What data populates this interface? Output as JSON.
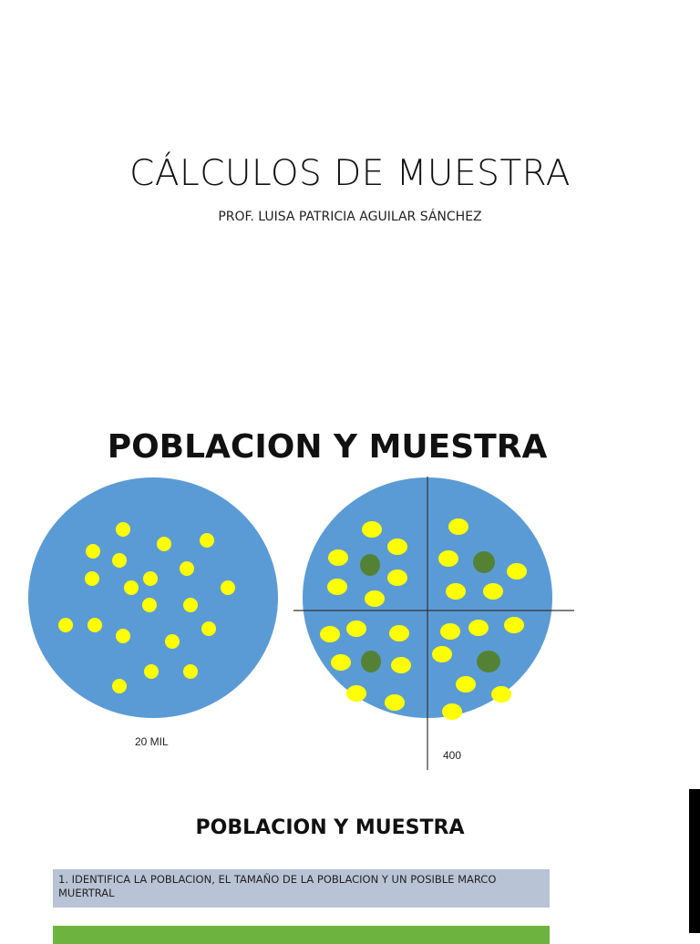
{
  "slide1": {
    "title": "CÁLCULOS DE MUESTRA",
    "subtitle": "PROF. LUISA PATRICIA AGUILAR SÁNCHEZ"
  },
  "slide2": {
    "title": "POBLACION Y MUESTRA",
    "population_label": "20 MIL",
    "sample_label": "400",
    "colors": {
      "circle": "#5b9bd5",
      "dot": "#ffff00",
      "sample_dot": "#548235"
    }
  },
  "slide3": {
    "title": "POBLACION Y MUESTRA",
    "steps": [
      {
        "text": "1. IDENTIFICA LA POBLACION, EL TAMAÑO DE LA POBLACION Y UN POSIBLE MARCO MUERTRAL",
        "color": "#b9c3d6"
      },
      {
        "text": "",
        "color": "#6db33f"
      }
    ]
  }
}
